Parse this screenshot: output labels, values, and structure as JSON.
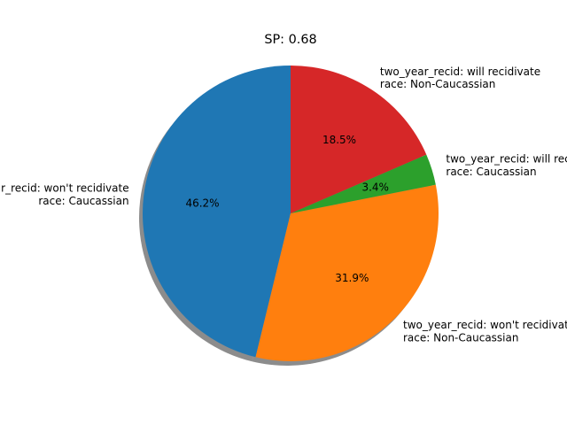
{
  "chart_data": {
    "type": "pie",
    "title": "SP: 0.68",
    "start_angle": 90,
    "direction": "counterclockwise",
    "shadow": true,
    "slices": [
      {
        "label_lines": [
          "two_year_recid: won't recidivate",
          "race: Caucassian"
        ],
        "value": 46.2,
        "percent_label": "46.2%",
        "color": "#1f77b4"
      },
      {
        "label_lines": [
          "two_year_recid: won't recidivate",
          "race: Non-Caucassian"
        ],
        "value": 31.9,
        "percent_label": "31.9%",
        "color": "#ff7f0e"
      },
      {
        "label_lines": [
          "two_year_recid: will recidivate",
          "race: Caucassian"
        ],
        "value": 3.4,
        "percent_label": "3.4%",
        "color": "#2ca02c"
      },
      {
        "label_lines": [
          "two_year_recid: will recidivate",
          "race: Non-Caucassian"
        ],
        "value": 18.5,
        "percent_label": "18.5%",
        "color": "#d62728"
      }
    ]
  }
}
